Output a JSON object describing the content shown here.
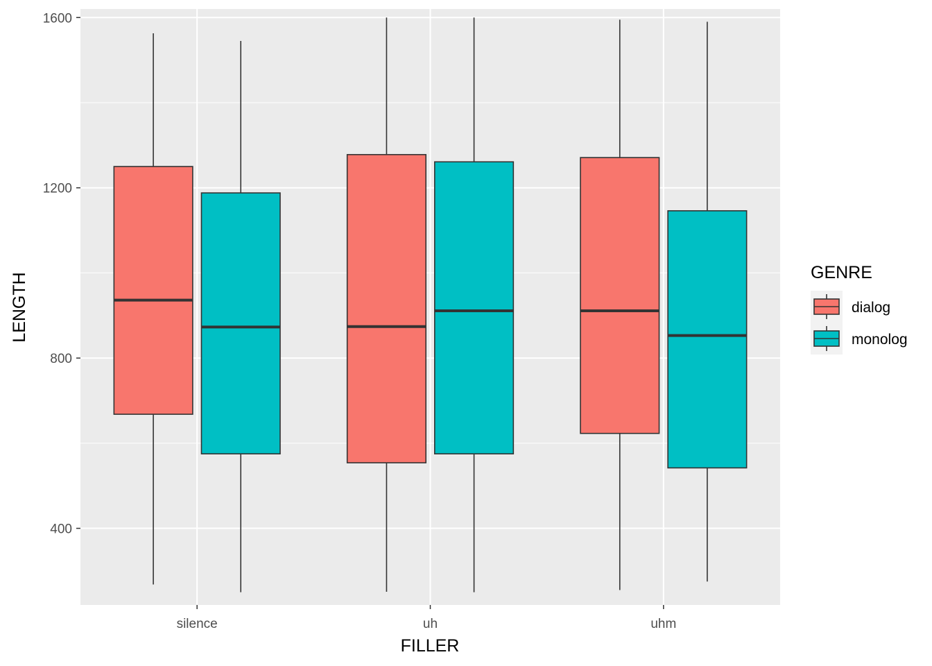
{
  "chart_data": {
    "type": "boxplot",
    "title": "",
    "xlabel": "FILLER",
    "ylabel": "LENGTH",
    "categories": [
      "silence",
      "uh",
      "uhm"
    ],
    "ylim": [
      220,
      1620
    ],
    "yticks": [
      400,
      800,
      1200,
      1600
    ],
    "grid": true,
    "legend": {
      "title": "GENRE",
      "placement": "right"
    },
    "series": [
      {
        "name": "dialog",
        "color": "#F8766D",
        "boxes": [
          {
            "min": 268,
            "q1": 668,
            "median": 936,
            "q3": 1250,
            "max": 1563
          },
          {
            "min": 251,
            "q1": 554,
            "median": 874,
            "q3": 1278,
            "max": 1600
          },
          {
            "min": 255,
            "q1": 623,
            "median": 911,
            "q3": 1271,
            "max": 1595
          }
        ]
      },
      {
        "name": "monolog",
        "color": "#00BFC4",
        "boxes": [
          {
            "min": 250,
            "q1": 575,
            "median": 873,
            "q3": 1188,
            "max": 1545
          },
          {
            "min": 250,
            "q1": 575,
            "median": 911,
            "q3": 1261,
            "max": 1600
          },
          {
            "min": 275,
            "q1": 542,
            "median": 853,
            "q3": 1146,
            "max": 1590
          }
        ]
      }
    ]
  }
}
